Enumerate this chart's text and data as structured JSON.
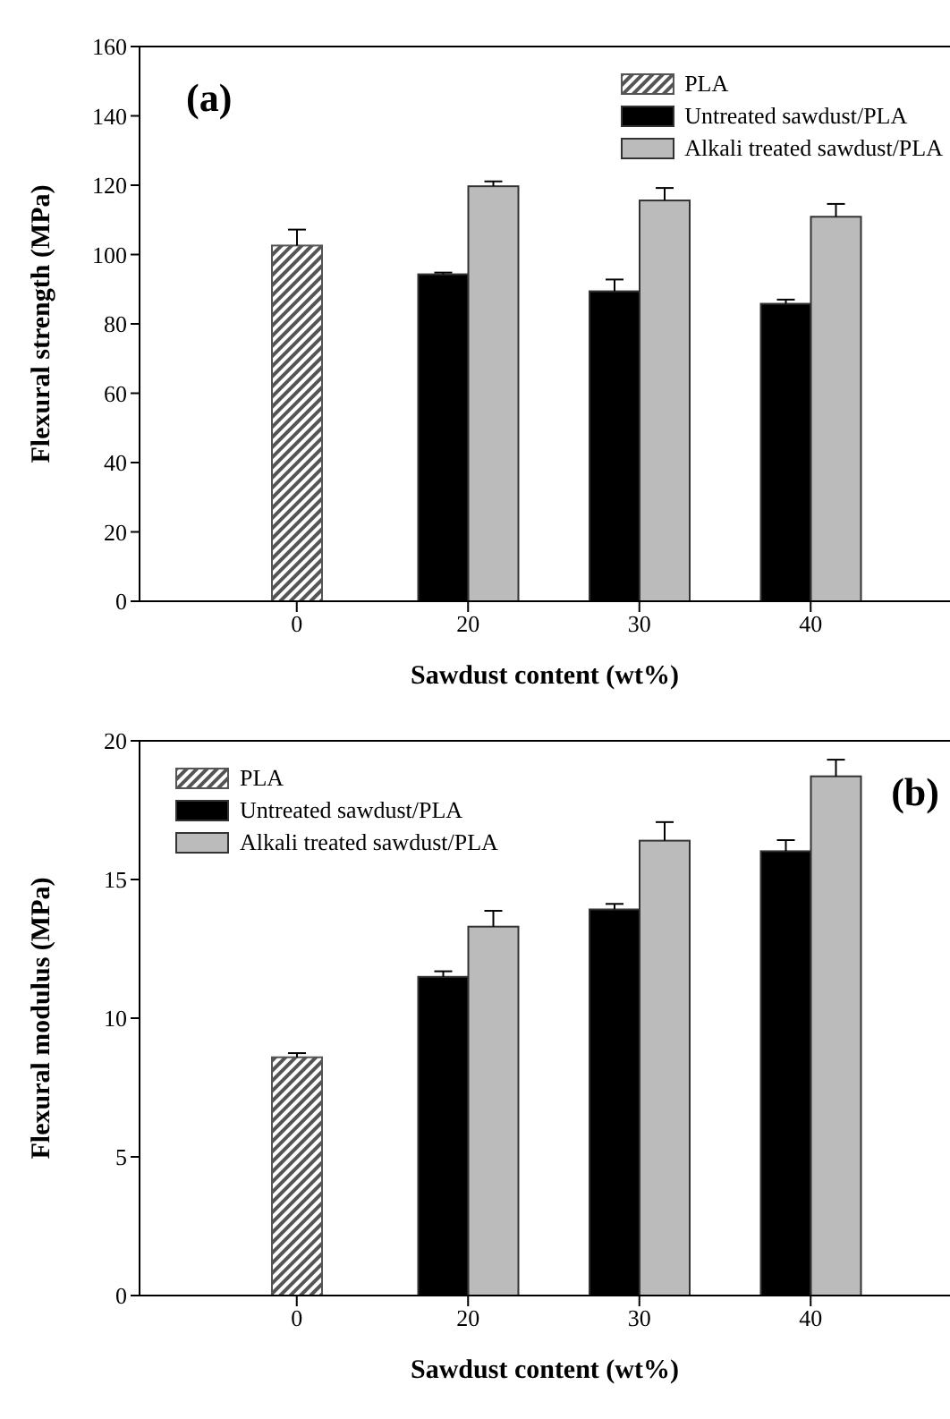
{
  "chart_data": [
    {
      "type": "bar",
      "xlabel": "Sawdust content (wt%)",
      "ylabel": "Flexural strength (MPa)",
      "categories": [
        "0",
        "20",
        "30",
        "40"
      ],
      "ylim": [
        0,
        160
      ],
      "yticks": [
        0,
        20,
        40,
        60,
        80,
        100,
        120,
        140,
        160
      ],
      "legend": "top right",
      "annotations": [
        "(a)"
      ],
      "series": [
        {
          "name": "PLA",
          "color": "#555555",
          "values": [
            102.6,
            null,
            null,
            null
          ],
          "errors": [
            4.6,
            null,
            null,
            null
          ]
        },
        {
          "name": "Untreated sawdust/PLA",
          "color": "#000000",
          "values": [
            null,
            94.3,
            89.4,
            85.8
          ],
          "errors": [
            null,
            0.5,
            3.4,
            1.2
          ]
        },
        {
          "name": "Alkali treated sawdust/PLA",
          "color": "#bbbbbb",
          "values": [
            null,
            119.7,
            115.6,
            110.9
          ],
          "errors": [
            null,
            1.4,
            3.6,
            3.7
          ]
        }
      ]
    },
    {
      "type": "bar",
      "xlabel": "Sawdust content (wt%)",
      "ylabel": "Flexural modulus (MPa)",
      "categories": [
        "0",
        "20",
        "30",
        "40"
      ],
      "ylim": [
        0,
        20
      ],
      "yticks": [
        0,
        5,
        10,
        15,
        20
      ],
      "legend": "top left",
      "annotations": [
        "(b)"
      ],
      "series": [
        {
          "name": "PLA",
          "color": "#555555",
          "values": [
            8.59,
            null,
            null,
            null
          ],
          "errors": [
            0.15,
            null,
            null,
            null
          ]
        },
        {
          "name": "Untreated sawdust/PLA",
          "color": "#000000",
          "values": [
            null,
            11.49,
            13.92,
            16.02
          ],
          "errors": [
            null,
            0.2,
            0.2,
            0.4
          ]
        },
        {
          "name": "Alkali treated sawdust/PLA",
          "color": "#bbbbbb",
          "values": [
            null,
            13.3,
            16.4,
            18.72
          ],
          "errors": [
            null,
            0.57,
            0.67,
            0.6
          ]
        }
      ]
    }
  ]
}
